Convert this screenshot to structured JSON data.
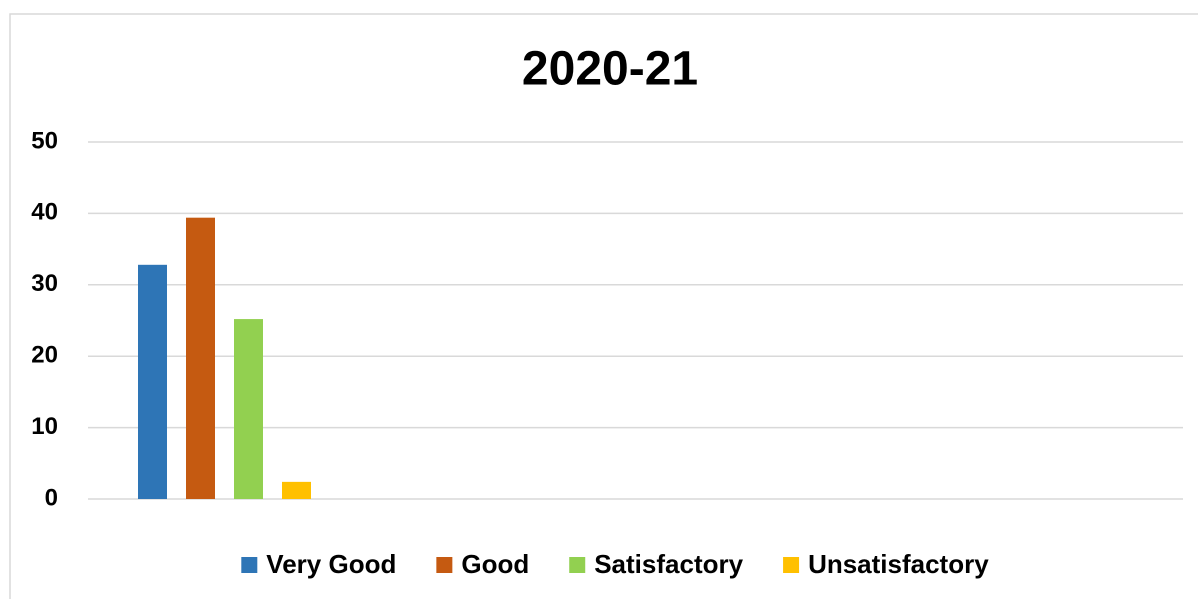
{
  "chart_data": {
    "type": "bar",
    "title": "2020-21",
    "categories": [
      null
    ],
    "series": [
      {
        "name": "Very Good",
        "color": "#2e75b6",
        "values": [
          32.8
        ]
      },
      {
        "name": "Good",
        "color": "#c55a11",
        "values": [
          39.4
        ]
      },
      {
        "name": "Satisfactory",
        "color": "#92d050",
        "values": [
          25.2
        ]
      },
      {
        "name": "Unsatisfactory",
        "color": "#ffc000",
        "values": [
          2.4
        ]
      }
    ],
    "ylim": [
      0,
      50
    ],
    "yticks": [
      0,
      10,
      20,
      30,
      40,
      50
    ],
    "grid": true,
    "legend": "bottom"
  }
}
